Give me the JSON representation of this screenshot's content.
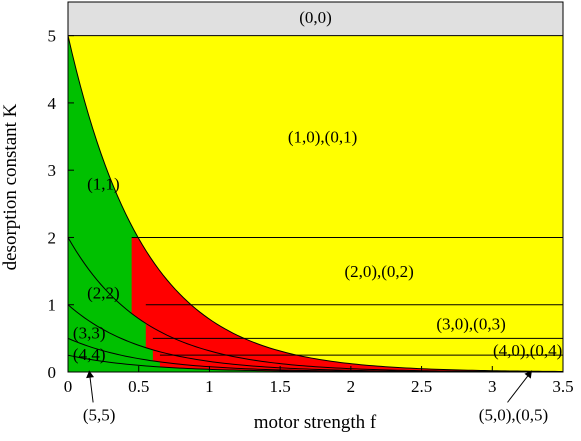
{
  "chart_data": {
    "type": "area",
    "title": "",
    "xlabel": "motor strength f",
    "ylabel": "desorption constant K",
    "xlim": [
      0,
      3.5
    ],
    "ylim": [
      0,
      5.5
    ],
    "x_ticks": [
      "0",
      "0.5",
      "1",
      "1.5",
      "2",
      "2.5",
      "3",
      "3.5"
    ],
    "y_ticks": [
      "0",
      "1",
      "2",
      "3",
      "4",
      "5"
    ],
    "grid": false,
    "colors": {
      "gray_region": "#e0e0e0",
      "yellow_region": "#ffff00",
      "green_region": "#00c000",
      "red_region": "#ff0000",
      "boundary_line": "#000000"
    },
    "regions": [
      {
        "label": "(0,0)",
        "color": "gray",
        "label_x": 1.75,
        "label_y": 5.28
      },
      {
        "label": "(1,0),(0,1)",
        "color": "yellow",
        "label_x": 1.8,
        "label_y": 3.5
      },
      {
        "label": "(1,1)",
        "color": "green",
        "label_x": 0.25,
        "label_y": 2.8
      },
      {
        "label": "(2,0),(0,2)",
        "color": "yellow",
        "label_x": 2.2,
        "label_y": 1.5
      },
      {
        "label": "(2,2)",
        "color": "green",
        "label_x": 0.25,
        "label_y": 1.18
      },
      {
        "label": "(3,0),(0,3)",
        "color": "yellow",
        "label_x": 2.85,
        "label_y": 0.72
      },
      {
        "label": "(3,3)",
        "color": "green",
        "label_x": 0.15,
        "label_y": 0.59
      },
      {
        "label": "(4,0),(0,4)",
        "color": "yellow",
        "label_x": 3.25,
        "label_y": 0.33
      },
      {
        "label": "(4,4)",
        "color": "green",
        "label_x": 0.15,
        "label_y": 0.27
      }
    ],
    "callouts": [
      {
        "label": "(5,5)",
        "label_x": 0.22,
        "label_y": -0.63,
        "arrow_to_x": 0.15,
        "arrow_to_y": 0.02
      },
      {
        "label": "(5,0),(0,5)",
        "label_x": 3.15,
        "label_y": -0.63,
        "arrow_to_x": 3.28,
        "arrow_to_y": 0.02
      }
    ],
    "series": [
      {
        "kind": "green_boundary",
        "n": 1,
        "K0": 5,
        "decay": 1.85
      },
      {
        "kind": "green_boundary",
        "n": 2,
        "K0": 2,
        "decay": 1.85
      },
      {
        "kind": "green_boundary",
        "n": 3,
        "K0": 1,
        "decay": 1.85
      },
      {
        "kind": "green_boundary",
        "n": 4,
        "K0": 0.5,
        "decay": 1.85
      },
      {
        "kind": "green_boundary",
        "n": 5,
        "K0": 0.25,
        "decay": 1.85
      }
    ],
    "horizontal_levels": [
      5,
      2,
      1,
      0.5,
      0.25
    ],
    "red_start_f": [
      0.45,
      0.55,
      0.6,
      0.65
    ]
  }
}
